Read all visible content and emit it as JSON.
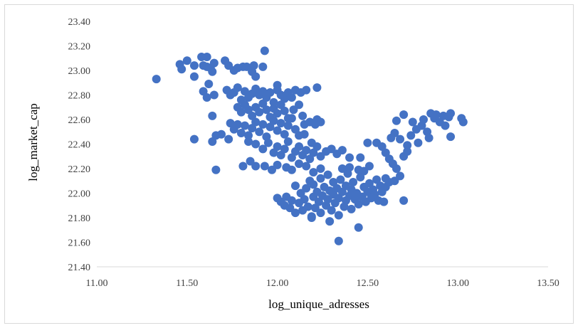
{
  "chart_data": {
    "type": "scatter",
    "title": "",
    "xlabel": "log_unique_adresses",
    "ylabel": "log_market_cap",
    "xlim": [
      11.0,
      13.5
    ],
    "ylim": [
      21.4,
      23.4
    ],
    "x_ticks": [
      "11.00",
      "11.50",
      "12.00",
      "12.50",
      "13.00",
      "13.50"
    ],
    "y_ticks": [
      "21.40",
      "21.60",
      "21.80",
      "22.00",
      "22.20",
      "22.40",
      "22.60",
      "22.80",
      "23.00",
      "23.20",
      "23.40"
    ],
    "grid": "none",
    "legend": "none",
    "marker_color": "#4472c4",
    "series": [
      {
        "points": [
          [
            11.33,
            22.93
          ],
          [
            11.46,
            23.05
          ],
          [
            11.47,
            23.01
          ],
          [
            11.5,
            23.08
          ],
          [
            11.54,
            23.04
          ],
          [
            11.54,
            22.95
          ],
          [
            11.58,
            23.11
          ],
          [
            11.59,
            23.04
          ],
          [
            11.61,
            23.11
          ],
          [
            11.61,
            23.03
          ],
          [
            11.63,
            23.02
          ],
          [
            11.64,
            22.99
          ],
          [
            11.65,
            23.06
          ],
          [
            11.62,
            22.89
          ],
          [
            11.59,
            22.83
          ],
          [
            11.61,
            22.78
          ],
          [
            11.65,
            22.8
          ],
          [
            11.64,
            22.63
          ],
          [
            11.66,
            22.47
          ],
          [
            11.64,
            22.42
          ],
          [
            11.54,
            22.44
          ],
          [
            11.69,
            22.48
          ],
          [
            11.66,
            22.19
          ],
          [
            11.71,
            23.08
          ],
          [
            11.73,
            23.04
          ],
          [
            11.76,
            23.0
          ],
          [
            11.78,
            23.02
          ],
          [
            11.81,
            23.03
          ],
          [
            11.83,
            23.03
          ],
          [
            11.86,
            22.99
          ],
          [
            11.87,
            23.04
          ],
          [
            11.88,
            22.95
          ],
          [
            11.92,
            23.03
          ],
          [
            11.93,
            23.16
          ],
          [
            11.72,
            22.84
          ],
          [
            11.74,
            22.8
          ],
          [
            11.76,
            22.82
          ],
          [
            11.78,
            22.86
          ],
          [
            11.8,
            22.76
          ],
          [
            11.82,
            22.83
          ],
          [
            11.84,
            22.78
          ],
          [
            11.86,
            22.81
          ],
          [
            11.88,
            22.85
          ],
          [
            11.9,
            22.8
          ],
          [
            11.92,
            22.83
          ],
          [
            11.94,
            22.78
          ],
          [
            11.96,
            22.82
          ],
          [
            11.98,
            22.74
          ],
          [
            12.0,
            22.84
          ],
          [
            12.02,
            22.8
          ],
          [
            12.04,
            22.77
          ],
          [
            12.06,
            22.82
          ],
          [
            12.08,
            22.78
          ],
          [
            12.1,
            22.84
          ],
          [
            12.13,
            22.82
          ],
          [
            12.16,
            22.84
          ],
          [
            12.22,
            22.86
          ],
          [
            12.0,
            22.88
          ],
          [
            11.78,
            22.7
          ],
          [
            11.8,
            22.66
          ],
          [
            11.82,
            22.72
          ],
          [
            11.84,
            22.68
          ],
          [
            11.86,
            22.63
          ],
          [
            11.88,
            22.7
          ],
          [
            11.9,
            22.66
          ],
          [
            11.92,
            22.73
          ],
          [
            11.94,
            22.68
          ],
          [
            11.96,
            22.62
          ],
          [
            11.98,
            22.69
          ],
          [
            12.0,
            22.65
          ],
          [
            12.02,
            22.72
          ],
          [
            12.04,
            22.67
          ],
          [
            12.06,
            22.61
          ],
          [
            12.09,
            22.68
          ],
          [
            12.12,
            22.72
          ],
          [
            11.74,
            22.57
          ],
          [
            11.76,
            22.52
          ],
          [
            11.78,
            22.56
          ],
          [
            11.8,
            22.49
          ],
          [
            11.82,
            22.55
          ],
          [
            11.84,
            22.47
          ],
          [
            11.86,
            22.53
          ],
          [
            11.88,
            22.58
          ],
          [
            11.9,
            22.5
          ],
          [
            11.92,
            22.56
          ],
          [
            11.94,
            22.46
          ],
          [
            11.96,
            22.54
          ],
          [
            11.98,
            22.59
          ],
          [
            12.0,
            22.51
          ],
          [
            12.02,
            22.57
          ],
          [
            12.04,
            22.48
          ],
          [
            12.06,
            22.55
          ],
          [
            12.08,
            22.61
          ],
          [
            12.1,
            22.52
          ],
          [
            12.12,
            22.47
          ],
          [
            12.15,
            22.56
          ],
          [
            12.18,
            22.58
          ],
          [
            12.14,
            22.63
          ],
          [
            11.73,
            22.44
          ],
          [
            11.84,
            22.42
          ],
          [
            11.88,
            22.4
          ],
          [
            11.92,
            22.36
          ],
          [
            11.95,
            22.41
          ],
          [
            11.98,
            22.33
          ],
          [
            12.0,
            22.38
          ],
          [
            12.02,
            22.31
          ],
          [
            12.04,
            22.36
          ],
          [
            12.06,
            22.42
          ],
          [
            12.08,
            22.29
          ],
          [
            12.1,
            22.34
          ],
          [
            12.12,
            22.38
          ],
          [
            12.14,
            22.31
          ],
          [
            12.16,
            22.35
          ],
          [
            12.18,
            22.28
          ],
          [
            12.2,
            22.33
          ],
          [
            12.22,
            22.38
          ],
          [
            12.24,
            22.3
          ],
          [
            12.27,
            22.34
          ],
          [
            12.3,
            22.36
          ],
          [
            12.33,
            22.32
          ],
          [
            12.36,
            22.35
          ],
          [
            11.85,
            22.26
          ],
          [
            11.88,
            22.22
          ],
          [
            11.93,
            22.22
          ],
          [
            11.97,
            22.19
          ],
          [
            11.81,
            22.22
          ],
          [
            12.0,
            22.23
          ],
          [
            12.05,
            22.21
          ],
          [
            12.08,
            22.19
          ],
          [
            12.12,
            22.24
          ],
          [
            12.16,
            22.22
          ],
          [
            12.2,
            22.17
          ],
          [
            12.24,
            22.2
          ],
          [
            12.22,
            22.6
          ],
          [
            12.24,
            22.58
          ],
          [
            12.21,
            22.56
          ],
          [
            12.15,
            22.48
          ],
          [
            12.19,
            22.41
          ],
          [
            12.4,
            22.29
          ],
          [
            12.46,
            22.29
          ],
          [
            12.5,
            22.41
          ],
          [
            12.48,
            22.18
          ],
          [
            12.0,
            21.96
          ],
          [
            12.02,
            21.93
          ],
          [
            12.04,
            21.9
          ],
          [
            12.05,
            21.97
          ],
          [
            12.07,
            21.88
          ],
          [
            12.08,
            21.94
          ],
          [
            12.1,
            21.84
          ],
          [
            12.1,
            22.06
          ],
          [
            12.12,
            21.92
          ],
          [
            12.13,
            22.0
          ],
          [
            12.14,
            21.86
          ],
          [
            12.15,
            21.95
          ],
          [
            12.16,
            22.04
          ],
          [
            12.17,
            21.89
          ],
          [
            12.18,
            22.1
          ],
          [
            12.19,
            21.81
          ],
          [
            12.2,
            21.97
          ],
          [
            12.2,
            22.07
          ],
          [
            12.21,
            21.88
          ],
          [
            12.22,
            22.01
          ],
          [
            12.23,
            21.93
          ],
          [
            12.24,
            22.12
          ],
          [
            12.24,
            21.84
          ],
          [
            12.25,
            21.98
          ],
          [
            12.26,
            22.05
          ],
          [
            12.27,
            21.9
          ],
          [
            12.28,
            22.15
          ],
          [
            12.28,
            21.95
          ],
          [
            12.29,
            22.02
          ],
          [
            12.3,
            21.86
          ],
          [
            12.31,
            21.99
          ],
          [
            12.31,
            22.09
          ],
          [
            12.32,
            21.92
          ],
          [
            12.33,
            22.04
          ],
          [
            12.34,
            21.82
          ],
          [
            12.34,
            21.96
          ],
          [
            12.35,
            22.11
          ],
          [
            12.36,
            22.01
          ],
          [
            12.37,
            21.89
          ],
          [
            12.38,
            22.06
          ],
          [
            12.38,
            21.94
          ],
          [
            12.39,
            22.16
          ],
          [
            12.4,
            21.98
          ],
          [
            12.41,
            22.03
          ],
          [
            12.41,
            21.87
          ],
          [
            12.42,
            22.09
          ],
          [
            12.43,
            21.95
          ],
          [
            12.44,
            22.0
          ],
          [
            12.45,
            21.91
          ],
          [
            12.46,
            22.13
          ],
          [
            12.47,
            21.97
          ],
          [
            12.48,
            22.05
          ],
          [
            12.49,
            21.93
          ],
          [
            12.5,
            22.01
          ],
          [
            12.51,
            22.08
          ],
          [
            12.52,
            21.96
          ],
          [
            12.53,
            22.03
          ],
          [
            12.54,
            21.99
          ],
          [
            12.55,
            22.11
          ],
          [
            12.56,
            21.94
          ],
          [
            12.57,
            22.06
          ],
          [
            12.58,
            22.01
          ],
          [
            12.59,
            21.93
          ],
          [
            12.6,
            22.05
          ],
          [
            12.62,
            22.09
          ],
          [
            12.36,
            22.2
          ],
          [
            12.4,
            22.21
          ],
          [
            12.45,
            22.19
          ],
          [
            12.51,
            22.22
          ],
          [
            12.29,
            21.77
          ],
          [
            12.34,
            21.61
          ],
          [
            12.45,
            21.72
          ],
          [
            12.19,
            21.8
          ],
          [
            12.55,
            22.41
          ],
          [
            12.58,
            22.38
          ],
          [
            12.6,
            22.33
          ],
          [
            12.62,
            22.28
          ],
          [
            12.64,
            22.24
          ],
          [
            12.66,
            22.2
          ],
          [
            12.68,
            22.14
          ],
          [
            12.7,
            22.3
          ],
          [
            12.72,
            22.34
          ],
          [
            12.63,
            22.45
          ],
          [
            12.65,
            22.49
          ],
          [
            12.66,
            22.59
          ],
          [
            12.68,
            22.44
          ],
          [
            12.7,
            22.64
          ],
          [
            12.72,
            22.39
          ],
          [
            12.74,
            22.47
          ],
          [
            12.75,
            22.58
          ],
          [
            12.77,
            22.52
          ],
          [
            12.78,
            22.41
          ],
          [
            12.8,
            22.55
          ],
          [
            12.81,
            22.6
          ],
          [
            12.83,
            22.5
          ],
          [
            12.84,
            22.45
          ],
          [
            12.85,
            22.65
          ],
          [
            12.87,
            22.61
          ],
          [
            12.88,
            22.64
          ],
          [
            12.9,
            22.58
          ],
          [
            12.92,
            22.63
          ],
          [
            12.93,
            22.55
          ],
          [
            12.95,
            22.62
          ],
          [
            12.96,
            22.65
          ],
          [
            12.96,
            22.46
          ],
          [
            13.02,
            22.61
          ],
          [
            13.03,
            22.58
          ],
          [
            12.6,
            22.12
          ],
          [
            12.65,
            22.1
          ],
          [
            12.7,
            21.94
          ]
        ]
      }
    ]
  }
}
